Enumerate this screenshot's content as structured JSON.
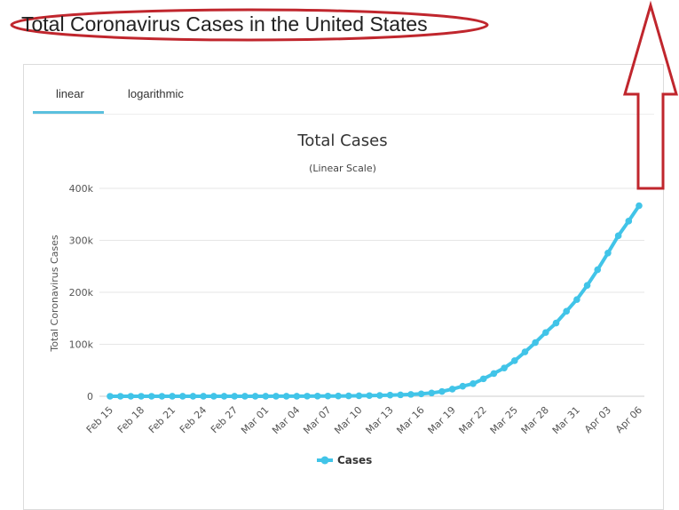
{
  "page": {
    "heading": "Total Coronavirus Cases in the United States"
  },
  "tabs": [
    {
      "label": "linear",
      "active": true
    },
    {
      "label": "logarithmic",
      "active": false
    }
  ],
  "colors": {
    "series": "#41c4e8",
    "annotation": "#c0262d",
    "active_tab": "#5bc0de"
  },
  "chart_data": {
    "type": "line",
    "title": "Total Cases",
    "subtitle": "(Linear Scale)",
    "ylabel": "Total Coronavirus Cases",
    "xlabel": "",
    "ylim": [
      0,
      400000
    ],
    "yticks": [
      {
        "value": 0,
        "label": "0"
      },
      {
        "value": 100000,
        "label": "100k"
      },
      {
        "value": 200000,
        "label": "200k"
      },
      {
        "value": 300000,
        "label": "300k"
      },
      {
        "value": 400000,
        "label": "400k"
      }
    ],
    "xtick_labels": [
      "Feb 15",
      "Feb 18",
      "Feb 21",
      "Feb 24",
      "Feb 27",
      "Mar 01",
      "Mar 04",
      "Mar 07",
      "Mar 10",
      "Mar 13",
      "Mar 16",
      "Mar 19",
      "Mar 22",
      "Mar 25",
      "Mar 28",
      "Mar 31",
      "Apr 03",
      "Apr 06"
    ],
    "legend": "bottom-center",
    "grid": true,
    "series": [
      {
        "name": "Cases",
        "x": [
          "Feb 15",
          "Feb 16",
          "Feb 17",
          "Feb 18",
          "Feb 19",
          "Feb 20",
          "Feb 21",
          "Feb 22",
          "Feb 23",
          "Feb 24",
          "Feb 25",
          "Feb 26",
          "Feb 27",
          "Feb 28",
          "Feb 29",
          "Mar 01",
          "Mar 02",
          "Mar 03",
          "Mar 04",
          "Mar 05",
          "Mar 06",
          "Mar 07",
          "Mar 08",
          "Mar 09",
          "Mar 10",
          "Mar 11",
          "Mar 12",
          "Mar 13",
          "Mar 14",
          "Mar 15",
          "Mar 16",
          "Mar 17",
          "Mar 18",
          "Mar 19",
          "Mar 20",
          "Mar 21",
          "Mar 22",
          "Mar 23",
          "Mar 24",
          "Mar 25",
          "Mar 26",
          "Mar 27",
          "Mar 28",
          "Mar 29",
          "Mar 30",
          "Mar 31",
          "Apr 01",
          "Apr 02",
          "Apr 03",
          "Apr 04",
          "Apr 05",
          "Apr 06"
        ],
        "values": [
          15,
          15,
          15,
          15,
          15,
          15,
          35,
          35,
          35,
          53,
          57,
          60,
          60,
          62,
          68,
          75,
          100,
          124,
          158,
          221,
          319,
          435,
          541,
          704,
          994,
          1301,
          1630,
          2183,
          2770,
          3613,
          4596,
          6344,
          9197,
          13789,
          19383,
          24207,
          33566,
          43734,
          54453,
          68440,
          85356,
          103321,
          122653,
          140904,
          163539,
          186101,
          213372,
          243453,
          275586,
          308850,
          337072,
          366667
        ]
      }
    ]
  }
}
